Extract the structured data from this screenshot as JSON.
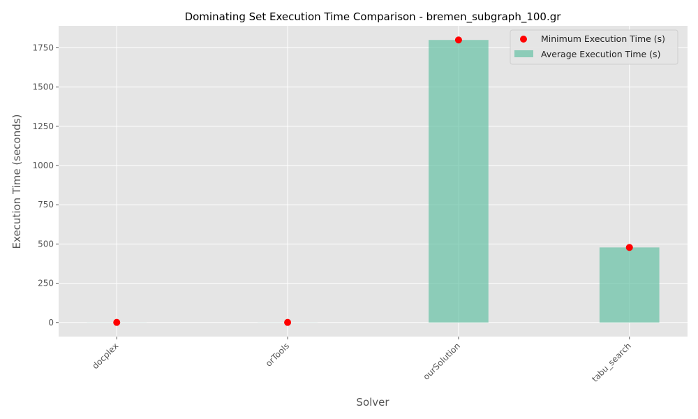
{
  "chart_data": {
    "type": "bar",
    "title": "Dominating Set Execution Time Comparison - bremen_subgraph_100.gr",
    "xlabel": "Solver",
    "ylabel": "Execution Time (seconds)",
    "categories": [
      "docplex",
      "orTools",
      "ourSolution",
      "tabu_search"
    ],
    "series": [
      {
        "name": "Average Execution Time (s)",
        "kind": "bar",
        "color": "#66c2a5",
        "values": [
          0.5,
          0.5,
          1800,
          478
        ]
      },
      {
        "name": "Minimum Execution Time (s)",
        "kind": "scatter",
        "color": "#ff0000",
        "values": [
          0.5,
          0.5,
          1800,
          478
        ]
      }
    ],
    "ylim": [
      -90,
      1890
    ],
    "yticks": [
      0,
      250,
      500,
      750,
      1000,
      1250,
      1500,
      1750
    ],
    "grid": true,
    "legend_position": "top-right",
    "background": "#e5e5e5"
  }
}
